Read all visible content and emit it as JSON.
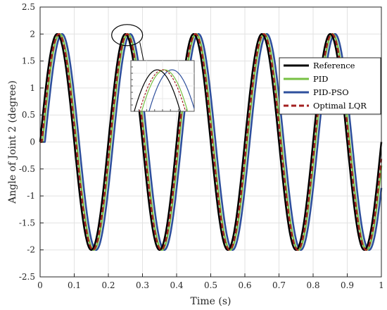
{
  "chart_data": {
    "type": "line",
    "title": "",
    "xlabel": "Time (s)",
    "ylabel": "Angle of Joint 2 (degree)",
    "xlim": [
      0,
      1
    ],
    "ylim": [
      -2.5,
      2.5
    ],
    "x_ticks": [
      "0",
      "0.1",
      "0.2",
      "0.3",
      "0.4",
      "0.5",
      "0.6",
      "0.7",
      "0.8",
      "0.9",
      "1"
    ],
    "y_ticks": [
      "2.5",
      "2",
      "1.5",
      "1",
      "0.5",
      "0",
      "-0.5",
      "-1",
      "-1.5",
      "-2",
      "-2.5"
    ],
    "grid": true,
    "legend_position": "right",
    "signal": {
      "amplitude": 2,
      "frequency_hz": 5
    },
    "series": [
      {
        "name": "Reference",
        "color": "#000000",
        "style": "solid",
        "lag_s": 0.0
      },
      {
        "name": "PID",
        "color": "#77c043",
        "style": "solid",
        "lag_s": 0.007
      },
      {
        "name": "PID-PSO",
        "color": "#2e4f9c",
        "style": "solid",
        "lag_s": 0.014
      },
      {
        "name": "Optimal LQR",
        "color": "#a32020",
        "style": "dashed",
        "lag_s": 0.005
      }
    ],
    "annotation": {
      "type": "zoom-inset",
      "center": [
        0.255,
        1.98
      ],
      "inset_window": {
        "x": [
          0.225,
          0.285
        ],
        "y": [
          1.55,
          2.1
        ]
      }
    }
  }
}
